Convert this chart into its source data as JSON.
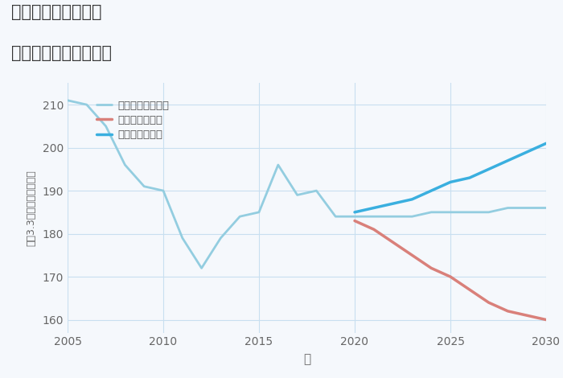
{
  "title_line1": "東京都足立区島根の",
  "title_line2": "中古戸建ての価格推移",
  "xlabel": "年",
  "ylabel": "坪（3.3㎡）単価（万円）",
  "background_color": "#f5f8fc",
  "grid_color": "#c8dff0",
  "xlim": [
    2005,
    2030
  ],
  "ylim": [
    157,
    215
  ],
  "yticks": [
    160,
    170,
    180,
    190,
    200,
    210
  ],
  "xticks": [
    2005,
    2010,
    2015,
    2020,
    2025,
    2030
  ],
  "good_scenario": {
    "label": "グッドシナリオ",
    "color": "#3aafdf",
    "x": [
      2020,
      2021,
      2022,
      2023,
      2024,
      2025,
      2026,
      2027,
      2028,
      2029,
      2030
    ],
    "y": [
      185,
      186,
      187,
      188,
      190,
      192,
      193,
      195,
      197,
      199,
      201
    ]
  },
  "bad_scenario": {
    "label": "バッドシナリオ",
    "color": "#d9807a",
    "x": [
      2020,
      2021,
      2022,
      2023,
      2024,
      2025,
      2026,
      2027,
      2028,
      2029,
      2030
    ],
    "y": [
      183,
      181,
      178,
      175,
      172,
      170,
      167,
      164,
      162,
      161,
      160
    ]
  },
  "normal_scenario": {
    "label": "ノーマルシナリオ",
    "color": "#93cde0",
    "x": [
      2005,
      2006,
      2007,
      2008,
      2009,
      2010,
      2011,
      2012,
      2013,
      2014,
      2015,
      2016,
      2017,
      2018,
      2019,
      2020,
      2021,
      2022,
      2023,
      2024,
      2025,
      2026,
      2027,
      2028,
      2029,
      2030
    ],
    "y": [
      211,
      210,
      205,
      196,
      191,
      190,
      179,
      172,
      179,
      184,
      185,
      196,
      189,
      190,
      184,
      184,
      184,
      184,
      184,
      185,
      185,
      185,
      185,
      186,
      186,
      186
    ]
  }
}
